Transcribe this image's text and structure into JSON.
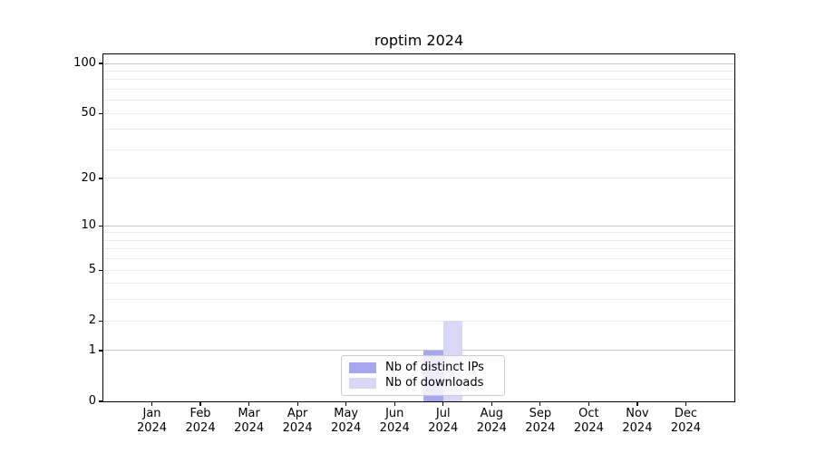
{
  "chart_data": {
    "type": "bar",
    "title": "roptim 2024",
    "categories": [
      "Jan",
      "Feb",
      "Mar",
      "Apr",
      "May",
      "Jun",
      "Jul",
      "Aug",
      "Sep",
      "Oct",
      "Nov",
      "Dec"
    ],
    "year_label": "2024",
    "series": [
      {
        "name": "Nb of distinct IPs",
        "color": "#a7a7f0",
        "values": [
          0,
          0,
          0,
          0,
          0,
          0,
          1,
          0,
          0,
          0,
          0,
          0
        ]
      },
      {
        "name": "Nb of downloads",
        "color": "#d8d8f6",
        "values": [
          0,
          0,
          0,
          0,
          0,
          0,
          2,
          0,
          0,
          0,
          0,
          0
        ]
      }
    ],
    "yscale": "log1p",
    "yticks": [
      0,
      1,
      2,
      5,
      10,
      20,
      50,
      100
    ],
    "major_grid_values": [
      1,
      10,
      100
    ],
    "minor_grid_values": [
      2,
      3,
      4,
      5,
      6,
      7,
      8,
      9,
      20,
      30,
      40,
      50,
      60,
      70,
      80,
      90
    ],
    "ylim": [
      0,
      113
    ],
    "xlabel": "",
    "ylabel": "",
    "grid": true,
    "legend_position": "lower center",
    "colors": {
      "bar_distinct_ips": "#a7a7f0",
      "bar_downloads": "#d8d8f6",
      "major_grid": "#c6c6c6",
      "minor_grid": "#ebebeb",
      "spine": "#000000",
      "text": "#000000",
      "legend_border": "#cccccc"
    }
  }
}
